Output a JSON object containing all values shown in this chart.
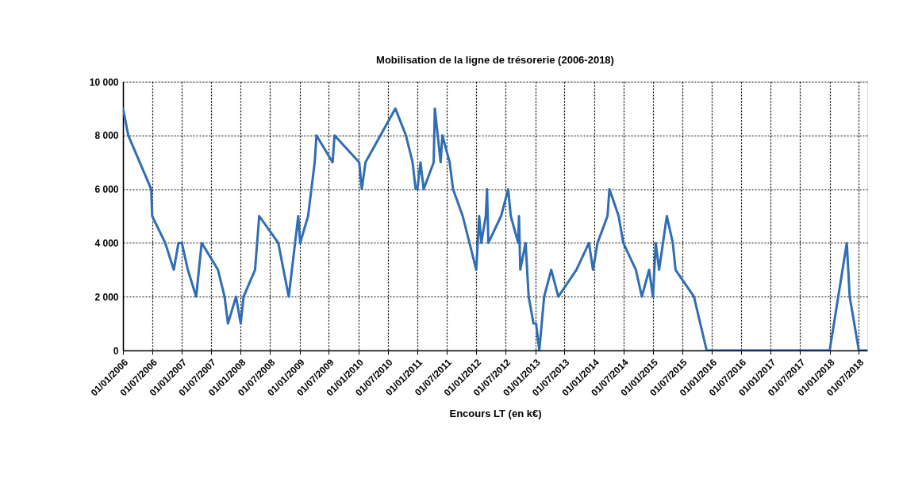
{
  "chart_data": {
    "type": "line",
    "title": "Mobilisation de la ligne de trésorerie (2006-2018)",
    "xlabel": "Encours LT (en k€)",
    "x": [
      "2006-01-01",
      "2006-02-03",
      "2006-06-25",
      "2006-07-01",
      "2006-09-20",
      "2006-11-12",
      "2006-12-11",
      "2007-01-01",
      "2007-02-07",
      "2007-03-31",
      "2007-05-04",
      "2007-08-13",
      "2007-09-23",
      "2007-10-14",
      "2007-12-03",
      "2008-01-01",
      "2008-01-19",
      "2008-03-30",
      "2008-04-25",
      "2008-08-21",
      "2008-10-25",
      "2008-12-23",
      "2009-01-04",
      "2009-02-22",
      "2009-04-04",
      "2009-04-15",
      "2009-07-24",
      "2009-08-05",
      "2010-01-05",
      "2010-01-21",
      "2010-02-13",
      "2010-08-17",
      "2010-10-22",
      "2010-12-02",
      "2010-12-21",
      "2011-01-01",
      "2011-01-20",
      "2011-02-09",
      "2011-04-12",
      "2011-04-19",
      "2011-05-25",
      "2011-06-05",
      "2011-07-20",
      "2011-08-10",
      "2011-10-09",
      "2012-01-01",
      "2012-01-19",
      "2012-02-01",
      "2012-02-29",
      "2012-03-08",
      "2012-03-16",
      "2012-06-03",
      "2012-07-17",
      "2012-08-02",
      "2012-09-17",
      "2012-09-22",
      "2012-09-30",
      "2012-11-02",
      "2012-11-21",
      "2012-12-21",
      "2013-01-06",
      "2013-01-26",
      "2013-02-25",
      "2013-04-10",
      "2013-05-24",
      "2013-09-13",
      "2013-11-30",
      "2013-12-25",
      "2014-01-22",
      "2014-03-25",
      "2014-04-06",
      "2014-06-02",
      "2014-07-01",
      "2014-09-17",
      "2014-10-24",
      "2014-12-08",
      "2015-01-01",
      "2015-01-18",
      "2015-02-08",
      "2015-03-28",
      "2015-05-04",
      "2015-05-21",
      "2015-09-12",
      "2015-11-30",
      "2018-01-01",
      "2018-04-17",
      "2018-05-05",
      "2018-07-01",
      "2018-08-22"
    ],
    "series": [
      {
        "color": "#2f6db5",
        "values": [
          9000,
          8000,
          6000,
          5000,
          4000,
          3000,
          4000,
          4000,
          3000,
          2000,
          4000,
          3000,
          2000,
          1000,
          2000,
          1000,
          2000,
          3000,
          5000,
          4000,
          2000,
          5000,
          4000,
          5000,
          7000,
          8000,
          7000,
          8000,
          7000,
          6000,
          7000,
          9000,
          8000,
          7000,
          6000,
          6000,
          7000,
          6000,
          7000,
          9000,
          7000,
          8000,
          7000,
          6000,
          5000,
          3000,
          5000,
          4000,
          5000,
          6000,
          4000,
          5000,
          6000,
          5000,
          4000,
          5000,
          3000,
          4000,
          2000,
          1000,
          1000,
          0,
          2000,
          3000,
          2000,
          3000,
          4000,
          3000,
          4000,
          5000,
          6000,
          5000,
          4000,
          3000,
          2000,
          3000,
          2000,
          4000,
          3000,
          5000,
          4000,
          3000,
          2000,
          0,
          0,
          4000,
          2000,
          0,
          0
        ]
      }
    ],
    "xlim": [
      "2006-01-01",
      "2018-08-22"
    ],
    "xticks": [
      {
        "value": "2006-01-01",
        "label": "01/01/2006"
      },
      {
        "value": "2006-07-01",
        "label": "01/07/2006"
      },
      {
        "value": "2007-01-01",
        "label": "01/01/2007"
      },
      {
        "value": "2007-07-01",
        "label": "01/07/2007"
      },
      {
        "value": "2008-01-01",
        "label": "01/01/2008"
      },
      {
        "value": "2008-07-01",
        "label": "01/07/2008"
      },
      {
        "value": "2009-01-01",
        "label": "01/01/2009"
      },
      {
        "value": "2009-07-01",
        "label": "01/07/2009"
      },
      {
        "value": "2010-01-01",
        "label": "01/01/2010"
      },
      {
        "value": "2010-07-01",
        "label": "01/07/2010"
      },
      {
        "value": "2011-01-01",
        "label": "01/01/2011"
      },
      {
        "value": "2011-07-01",
        "label": "01/07/2011"
      },
      {
        "value": "2012-01-01",
        "label": "01/01/2012"
      },
      {
        "value": "2012-07-01",
        "label": "01/07/2012"
      },
      {
        "value": "2013-01-01",
        "label": "01/01/2013"
      },
      {
        "value": "2013-07-01",
        "label": "01/07/2013"
      },
      {
        "value": "2014-01-01",
        "label": "01/01/2014"
      },
      {
        "value": "2014-07-01",
        "label": "01/07/2014"
      },
      {
        "value": "2015-01-01",
        "label": "01/01/2015"
      },
      {
        "value": "2015-07-01",
        "label": "01/07/2015"
      },
      {
        "value": "2016-01-01",
        "label": "01/01/2016"
      },
      {
        "value": "2016-07-01",
        "label": "01/07/2016"
      },
      {
        "value": "2017-01-01",
        "label": "01/01/2017"
      },
      {
        "value": "2017-07-01",
        "label": "01/07/2017"
      },
      {
        "value": "2018-01-01",
        "label": "01/01/2018"
      },
      {
        "value": "2018-07-01",
        "label": "01/07/2018"
      }
    ],
    "ylim": [
      0,
      10000
    ],
    "yticks": [
      0,
      {
        "value": 2000,
        "label": "2 000"
      },
      {
        "value": 4000,
        "label": "4 000"
      },
      {
        "value": 6000,
        "label": "6 000"
      },
      {
        "value": 8000,
        "label": "8 000"
      },
      {
        "value": 10000,
        "label": "10 000"
      }
    ],
    "grid": true,
    "marker": "none",
    "line_style": "solid"
  }
}
